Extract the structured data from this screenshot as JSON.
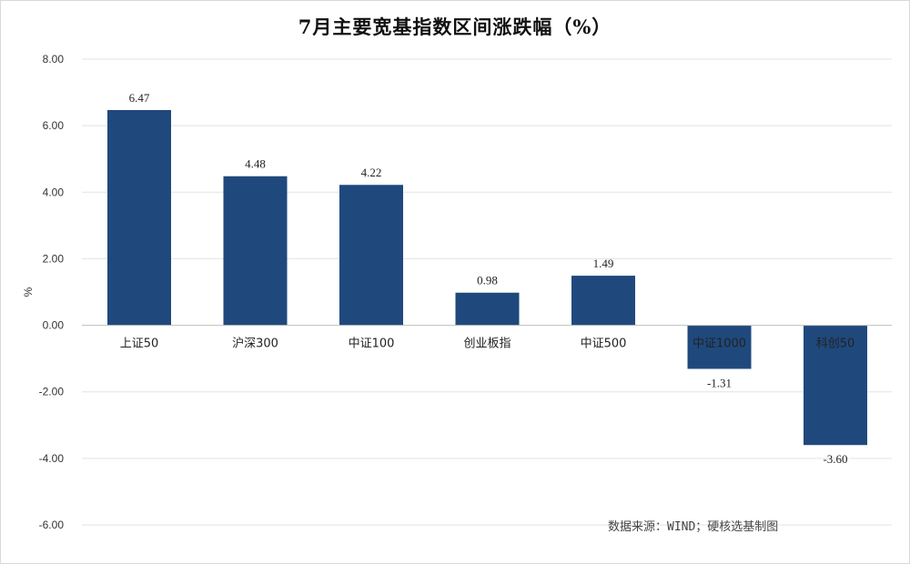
{
  "chart_data": {
    "type": "bar",
    "title": "7月主要宽基指数区间涨跌幅（%）",
    "ylabel": "%",
    "xlabel": "",
    "categories": [
      "上证50",
      "沪深300",
      "中证100",
      "创业板指",
      "中证500",
      "中证1000",
      "科创50"
    ],
    "values": [
      6.47,
      4.48,
      4.22,
      0.98,
      1.49,
      -1.31,
      -3.6
    ],
    "value_labels": [
      "6.47",
      "4.48",
      "4.22",
      "0.98",
      "1.49",
      "-1.31",
      "-3.60"
    ],
    "ylim": [
      -6,
      8
    ],
    "yticks": [
      8,
      6,
      4,
      2,
      0,
      -2,
      -4,
      -6
    ],
    "ytick_labels": [
      "8.00",
      "6.00",
      "4.00",
      "2.00",
      "0.00",
      "-2.00",
      "-4.00",
      "-6.00"
    ],
    "bar_color": "#1f497d",
    "grid": true,
    "legend": "none"
  },
  "source_note": "数据来源：WIND；硬核选基制图"
}
